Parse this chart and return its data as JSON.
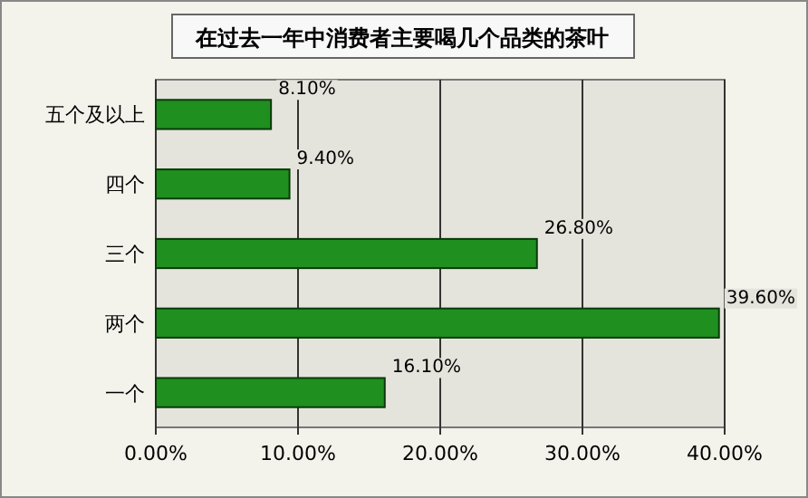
{
  "chart_data": {
    "type": "bar",
    "orientation": "horizontal",
    "title": "在过去一年中消费者主要喝几个品类的茶叶",
    "categories": [
      "五个及以上",
      "四个",
      "三个",
      "两个",
      "一个"
    ],
    "values": [
      8.1,
      9.4,
      26.8,
      39.6,
      16.1
    ],
    "value_labels": [
      "8.10%",
      "9.40%",
      "26.80%",
      "39.60%",
      "16.10%"
    ],
    "color": "#1f8f1f",
    "xlim": [
      0,
      40
    ],
    "xticks": [
      {
        "value": 0,
        "label": "0.00%"
      },
      {
        "value": 10,
        "label": "10.00%"
      },
      {
        "value": 20,
        "label": "20.00%"
      },
      {
        "value": 30,
        "label": "30.00%"
      },
      {
        "value": 40,
        "label": "40.00%"
      }
    ],
    "grid": "x"
  }
}
